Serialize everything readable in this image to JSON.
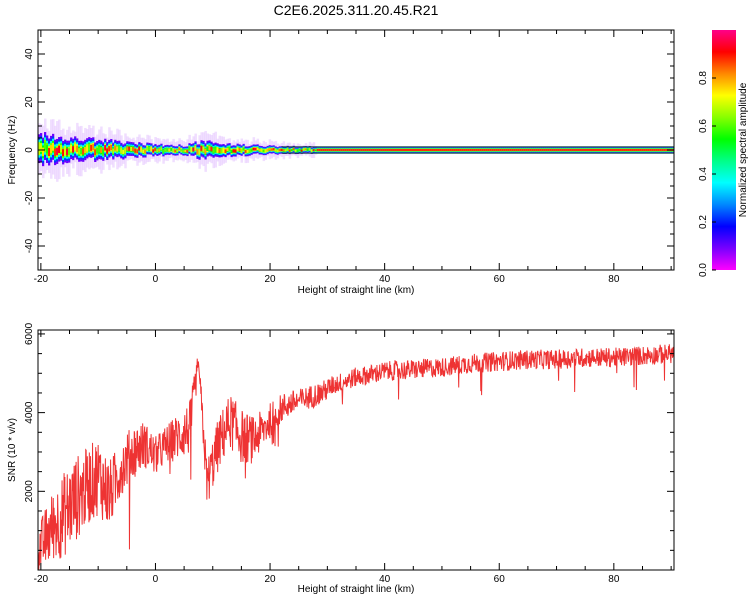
{
  "page": {
    "title": "C2E6.2025.311.20.45.R21"
  },
  "chart_data": [
    {
      "id": "spectrogram",
      "type": "heatmap",
      "title": "C2E6.2025.311.20.45.R21",
      "xlabel": "Height of straight line (km)",
      "ylabel": "Frequency (Hz)",
      "xlim": [
        -20.5,
        90.5
      ],
      "ylim": [
        -50,
        50
      ],
      "xticks": [
        -20,
        0,
        20,
        40,
        60,
        80
      ],
      "yticks": [
        -40,
        -20,
        0,
        20,
        40
      ],
      "center_frequency": 0,
      "colorbar": {
        "label": "Normalized spectral amplitude",
        "range": [
          0.0,
          1.0
        ],
        "ticks": [
          "0.0",
          "0.2",
          "0.4",
          "0.6",
          "0.8"
        ],
        "colors": [
          "#ff00ff",
          "#7700ff",
          "#0000ff",
          "#0088ff",
          "#00ffff",
          "#00ff88",
          "#00ff00",
          "#88ff00",
          "#ffff00",
          "#ff8800",
          "#ff0000",
          "#ff0088"
        ]
      },
      "spread_profile": {
        "x": [
          -20,
          -15,
          -10,
          -5,
          0,
          5,
          8,
          12,
          18,
          24,
          30,
          90
        ],
        "width_hz": [
          6,
          4.5,
          4,
          3,
          2.2,
          1.8,
          3.5,
          2.5,
          1.8,
          1.4,
          1.2,
          1.2
        ]
      }
    },
    {
      "id": "snr",
      "type": "line",
      "xlabel": "Height of straight line (km)",
      "ylabel": "SNR (10 * v/v)",
      "xlim": [
        -20.5,
        90.5
      ],
      "ylim": [
        0,
        6100
      ],
      "xticks": [
        -20,
        0,
        20,
        40,
        60,
        80
      ],
      "yticks": [
        2000,
        4000,
        6000
      ],
      "color": "#ee3333",
      "series": [
        {
          "name": "SNR",
          "x": [
            -20,
            -18,
            -16,
            -14,
            -12,
            -10,
            -8,
            -6,
            -4,
            -2,
            0,
            2,
            4,
            6,
            7.5,
            9,
            11,
            13,
            15,
            17,
            19,
            21,
            23,
            25,
            27,
            29,
            31,
            33,
            35,
            37,
            40,
            45,
            50,
            55,
            60,
            65,
            70,
            75,
            80,
            85,
            90
          ],
          "values": [
            600,
            1100,
            1400,
            1800,
            2100,
            2400,
            1900,
            2600,
            3000,
            3200,
            2900,
            3200,
            3400,
            3600,
            5300,
            2200,
            3200,
            3800,
            3400,
            3300,
            3600,
            4000,
            4200,
            4300,
            4400,
            4500,
            4700,
            4800,
            4900,
            4950,
            5050,
            5100,
            5150,
            5250,
            5300,
            5350,
            5350,
            5400,
            5400,
            5450,
            5500
          ],
          "noise": [
            700,
            900,
            1100,
            1100,
            1000,
            1000,
            900,
            700,
            700,
            600,
            500,
            500,
            600,
            700,
            300,
            600,
            700,
            700,
            700,
            600,
            500,
            400,
            350,
            300,
            300,
            300,
            250,
            250,
            250,
            250,
            250,
            250,
            250,
            250,
            250,
            250,
            250,
            250,
            250,
            250,
            250
          ]
        }
      ]
    }
  ]
}
